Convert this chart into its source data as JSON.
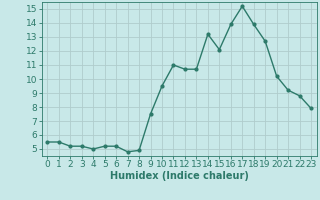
{
  "x": [
    0,
    1,
    2,
    3,
    4,
    5,
    6,
    7,
    8,
    9,
    10,
    11,
    12,
    13,
    14,
    15,
    16,
    17,
    18,
    19,
    20,
    21,
    22,
    23
  ],
  "y": [
    5.5,
    5.5,
    5.2,
    5.2,
    5.0,
    5.2,
    5.2,
    4.8,
    4.9,
    7.5,
    9.5,
    11.0,
    10.7,
    10.7,
    13.2,
    12.1,
    13.9,
    15.2,
    13.9,
    12.7,
    10.2,
    9.2,
    8.8,
    7.9
  ],
  "line_color": "#2d7a6a",
  "marker": ".",
  "markersize": 4,
  "linewidth": 1.0,
  "bg_color": "#c8e8e8",
  "grid_color": "#b0cccc",
  "xlabel": "Humidex (Indice chaleur)",
  "xlim": [
    -0.5,
    23.5
  ],
  "ylim": [
    4.5,
    15.5
  ],
  "yticks": [
    5,
    6,
    7,
    8,
    9,
    10,
    11,
    12,
    13,
    14,
    15
  ],
  "xticks": [
    0,
    1,
    2,
    3,
    4,
    5,
    6,
    7,
    8,
    9,
    10,
    11,
    12,
    13,
    14,
    15,
    16,
    17,
    18,
    19,
    20,
    21,
    22,
    23
  ],
  "tick_color": "#2d7a6a",
  "label_color": "#2d7a6a",
  "fontsize_xlabel": 7,
  "fontsize_ticks": 6.5
}
